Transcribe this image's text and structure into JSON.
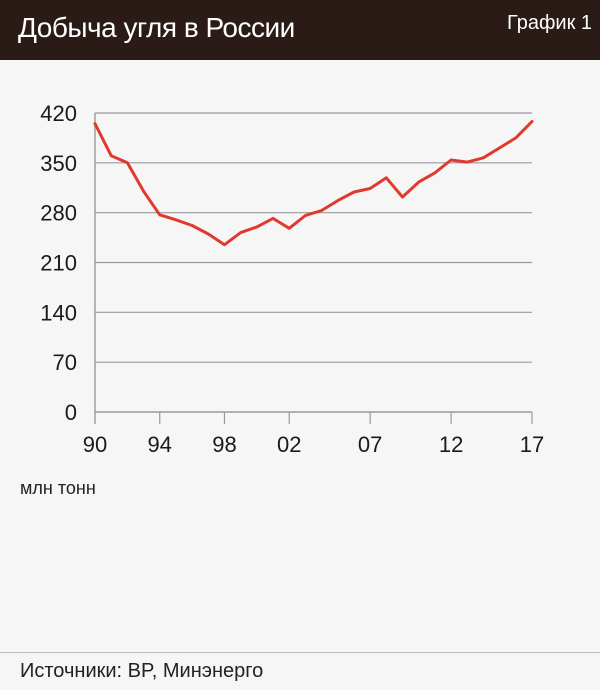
{
  "header": {
    "title": "Добыча угля в России",
    "chart_number": "График 1"
  },
  "unit": "млн тонн",
  "source": "Источники: BP, Минэнерго",
  "colors": {
    "header_bg": "#2b1b17",
    "line": "#e03a2f",
    "grid": "#9a9a9a",
    "background": "#f7f6f6"
  },
  "chart_data": {
    "type": "line",
    "title": "Добыча угля в России",
    "ylabel": "млн тонн",
    "xlabel": "",
    "ylim": [
      0,
      420
    ],
    "xlim": [
      1990,
      2017
    ],
    "yticks": [
      0,
      70,
      140,
      210,
      280,
      350,
      420
    ],
    "xticks": [
      {
        "year": 1990,
        "label": "90"
      },
      {
        "year": 1994,
        "label": "94"
      },
      {
        "year": 1998,
        "label": "98"
      },
      {
        "year": 2002,
        "label": "02"
      },
      {
        "year": 2007,
        "label": "07"
      },
      {
        "year": 2012,
        "label": "12"
      },
      {
        "year": 2017,
        "label": "17"
      }
    ],
    "grid": true,
    "series": [
      {
        "x": [
          1990,
          1991,
          1992,
          1993,
          1994,
          1995,
          1996,
          1997,
          1998,
          1999,
          2000,
          2001,
          2002,
          2003,
          2004,
          2005,
          2006,
          2007,
          2008,
          2009,
          2010,
          2011,
          2012,
          2013,
          2014,
          2015,
          2016,
          2017
        ],
        "values": [
          405,
          360,
          350,
          310,
          277,
          270,
          262,
          250,
          235,
          252,
          260,
          272,
          258,
          276,
          283,
          297,
          309,
          314,
          329,
          302,
          323,
          336,
          354,
          351,
          357,
          371,
          385,
          408
        ]
      }
    ]
  }
}
